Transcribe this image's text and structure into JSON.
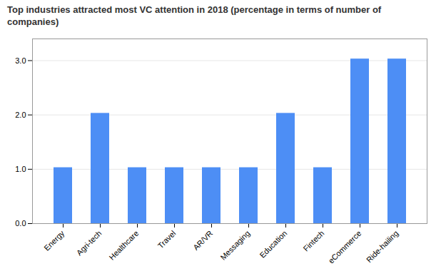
{
  "chart_data": {
    "type": "bar",
    "title": "Top industries attracted most VC attention in 2018 (percentage in terms of number of companies)",
    "categories": [
      "Energy",
      "Agri-tech",
      "Healthcare",
      "Travel",
      "AR/VR",
      "Messaging",
      "Education",
      "Fintech",
      "eCommerce",
      "Ride-hailing"
    ],
    "values": [
      1.03,
      2.03,
      1.03,
      1.03,
      1.03,
      1.03,
      2.03,
      1.03,
      3.03,
      3.03
    ],
    "color": "#4d8ef5",
    "ylim": [
      0,
      3.4
    ],
    "yticks": [
      0,
      1,
      2,
      3
    ],
    "grid": true
  }
}
